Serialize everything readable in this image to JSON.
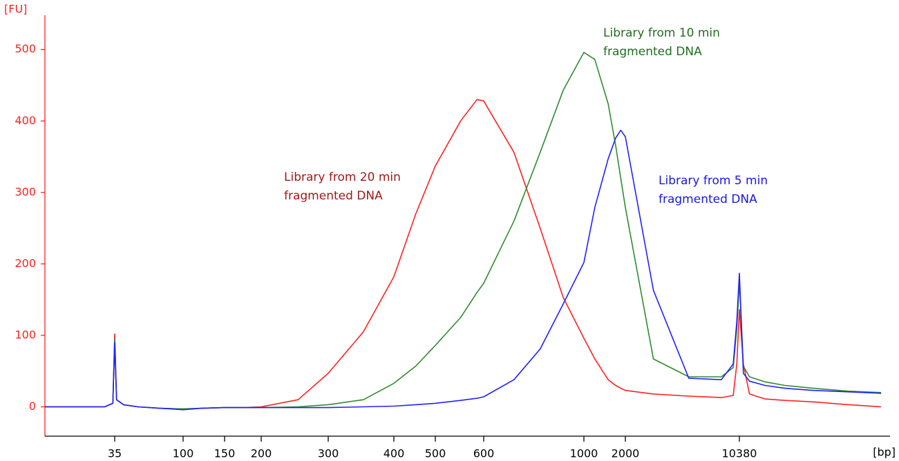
{
  "chart_data": {
    "type": "line",
    "y_label": "[FU]",
    "x_label": "[bp]",
    "log_x": true,
    "axis_color": "#ff2020",
    "x": [
      12,
      20,
      30,
      34,
      35,
      36,
      40,
      50,
      70,
      100,
      120,
      150,
      175,
      200,
      250,
      300,
      350,
      400,
      450,
      500,
      550,
      585,
      600,
      700,
      800,
      900,
      1000,
      1200,
      1500,
      1700,
      1850,
      2000,
      3000,
      5000,
      8000,
      9500,
      10000,
      10380,
      11000,
      12000,
      15000,
      20000,
      30000,
      50000,
      80000
    ],
    "series": [
      {
        "name": "Library from 20 min fragmented DNA",
        "color": "#ff2020",
        "values": [
          0,
          0,
          0,
          5,
          102,
          10,
          3,
          0,
          -2,
          -3,
          -2,
          -1,
          -1,
          0,
          10,
          47,
          105,
          182,
          270,
          337,
          400,
          430,
          428,
          356,
          250,
          153,
          96,
          67,
          38,
          30,
          26,
          23,
          18,
          15,
          13,
          16,
          60,
          136,
          60,
          18,
          11,
          9,
          7,
          3,
          0
        ]
      },
      {
        "name": "Library from 10 min fragmented DNA",
        "color": "#2e8b2e",
        "values": [
          0,
          0,
          0,
          5,
          95,
          10,
          3,
          0,
          -2,
          -3,
          -2,
          -1,
          -1,
          -1,
          0,
          3,
          10,
          33,
          57,
          86,
          125,
          160,
          173,
          260,
          356,
          443,
          496,
          486,
          424,
          366,
          320,
          279,
          67,
          42,
          42,
          55,
          110,
          175,
          57,
          42,
          35,
          30,
          26,
          22,
          20
        ]
      },
      {
        "name": "Library from 5 min fragmented DNA",
        "color": "#2020ff",
        "values": [
          0,
          0,
          0,
          5,
          90,
          10,
          3,
          0,
          -2,
          -4,
          -2,
          -1,
          -1,
          -1,
          -1,
          -1,
          0,
          1,
          3,
          5,
          9,
          12,
          14,
          38,
          81,
          144,
          202,
          279,
          347,
          376,
          387,
          378,
          163,
          40,
          38,
          60,
          120,
          187,
          47,
          36,
          30,
          26,
          23,
          21,
          19
        ]
      }
    ],
    "annotations": [
      {
        "lines": [
          "Library from 20 min",
          "fragmented DNA"
        ],
        "color": "#a01818"
      },
      {
        "lines": [
          "Library from 10 min",
          "fragmented DNA"
        ],
        "color": "#1e6e1e"
      },
      {
        "lines": [
          "Library from 5 min",
          "fragmented DNA"
        ],
        "color": "#1818e0"
      }
    ],
    "xlim": [
      12,
      84000
    ],
    "xticks": [
      35,
      100,
      150,
      200,
      300,
      400,
      500,
      600,
      1000,
      2000,
      10380
    ],
    "ylim": [
      -41,
      548
    ],
    "yticks": [
      0,
      100,
      200,
      300,
      400,
      500
    ]
  }
}
